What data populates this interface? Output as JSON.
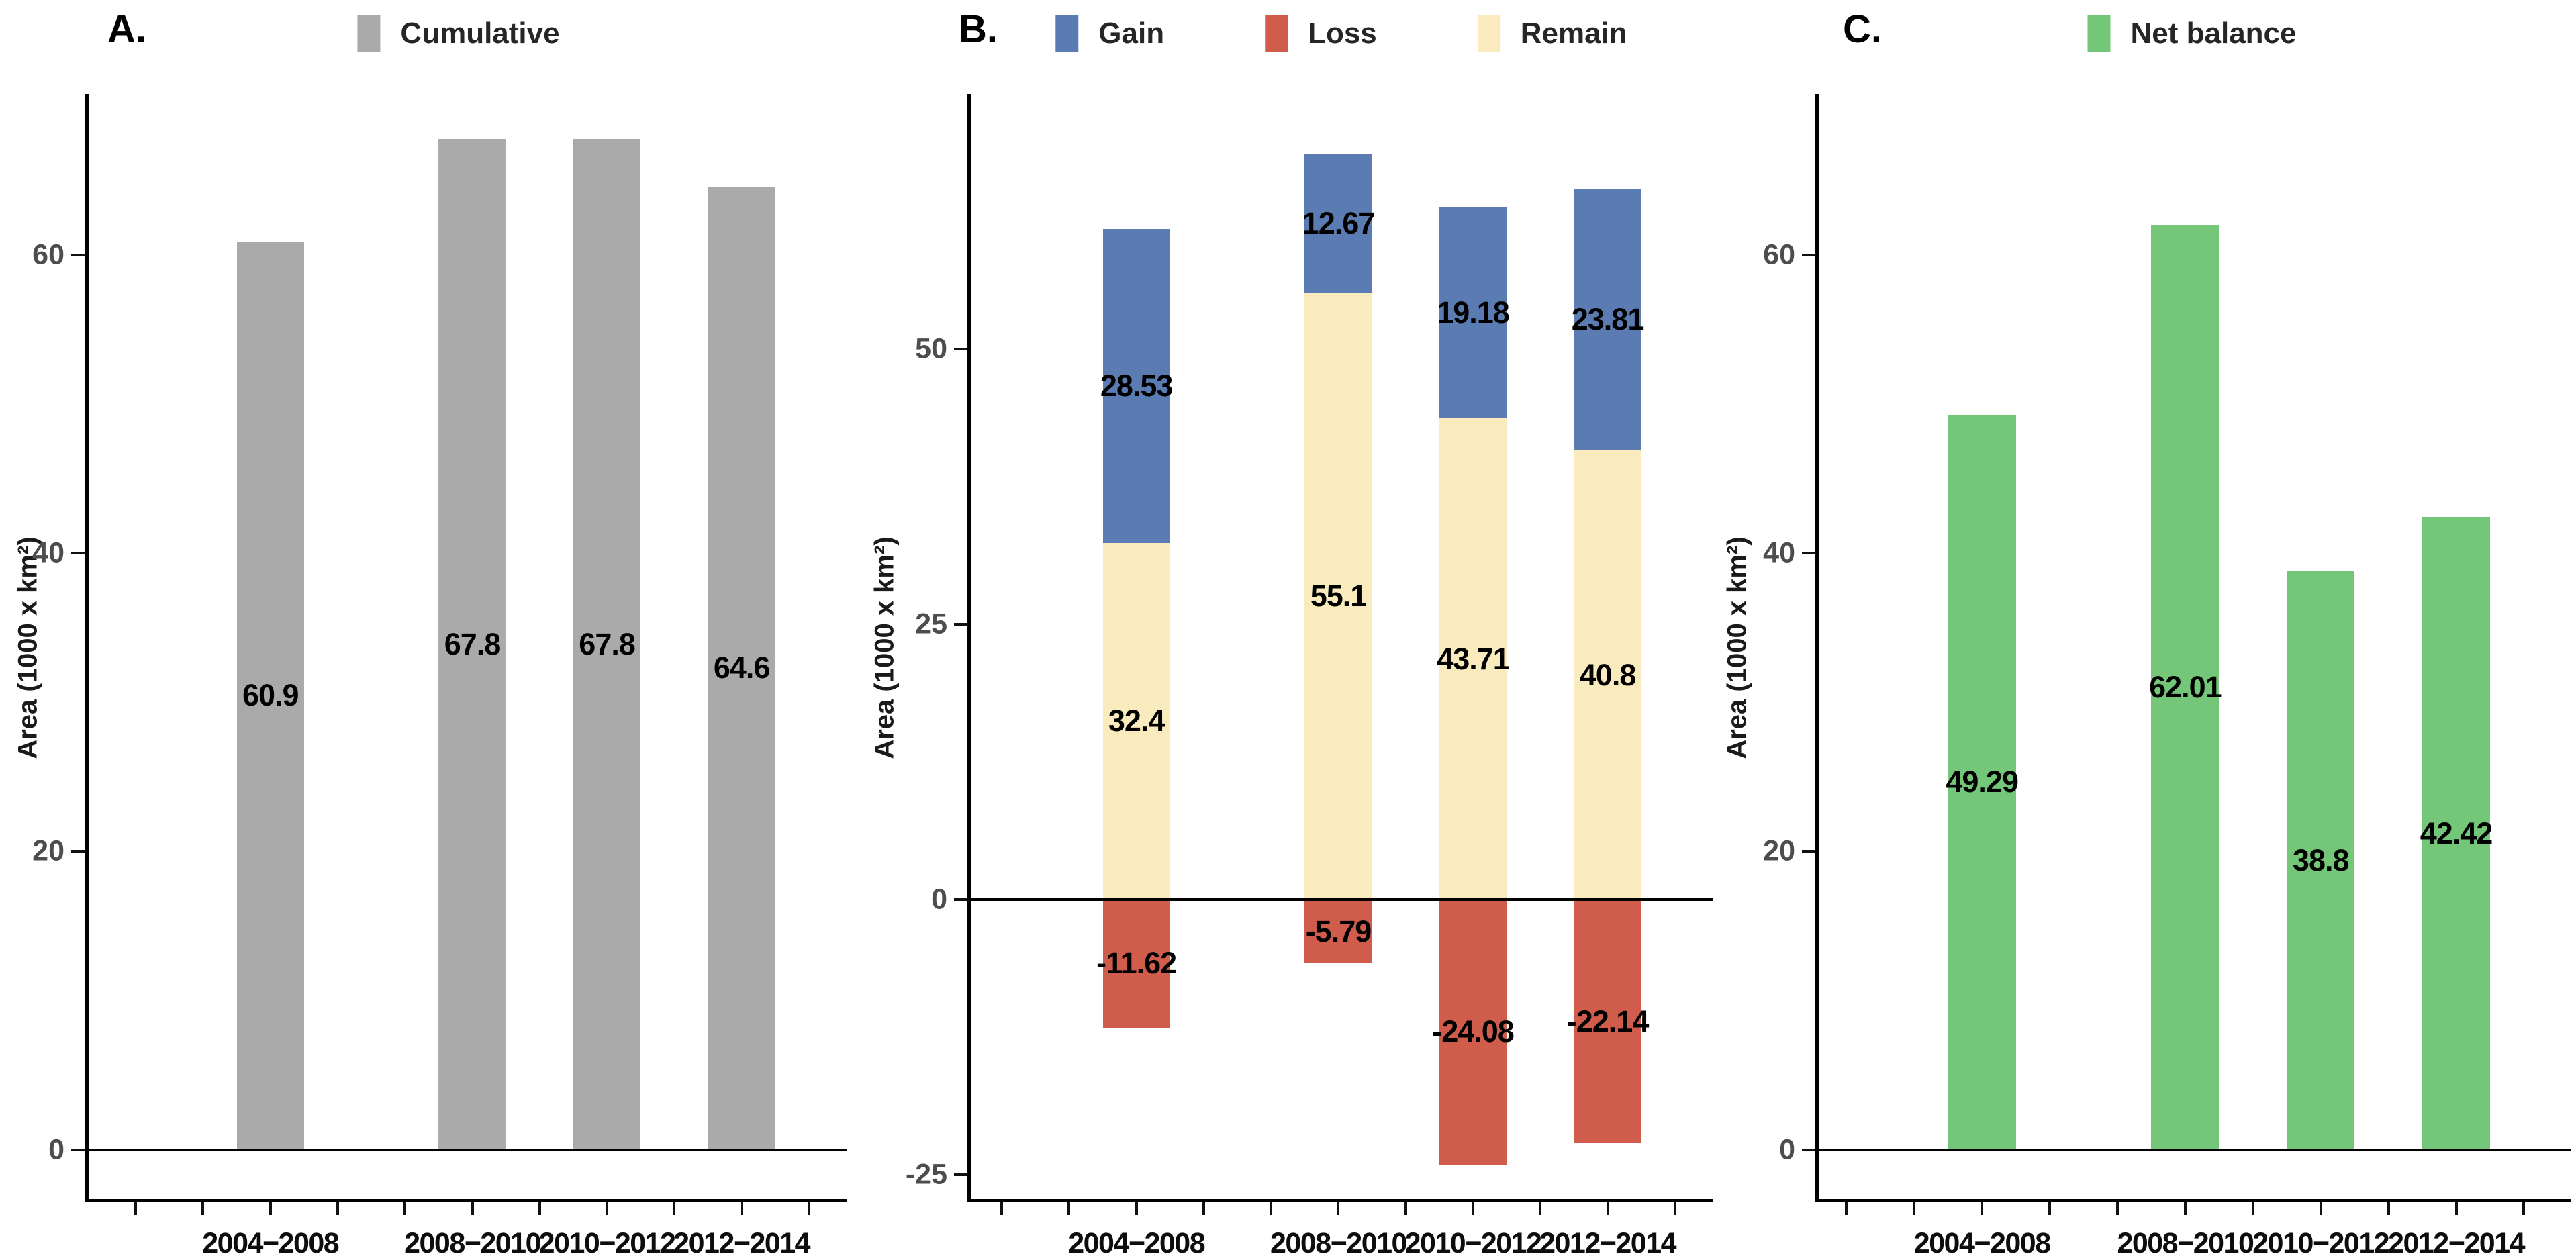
{
  "figure_background": "#FFFFFF",
  "colors": {
    "cumulative_gray": "#AAAAAA",
    "gain_blue": "#5B7CB2",
    "loss_red": "#D05C4B",
    "remain_cream": "#FAEBBE",
    "net_balance_green": "#74C678",
    "axis_black": "#000000",
    "tick_label_gray": "#4D4D4D"
  },
  "chart_data": [
    {
      "type": "bar",
      "panel_label": "A.",
      "legend": [
        {
          "label": "Cumulative",
          "color": "#AAAAAA"
        }
      ],
      "legend_position": "top-center",
      "ylabel": "Area (1000 x km²)",
      "xlabel": "",
      "categories": [
        "2004−2008",
        "2008−2010",
        "2010−2012",
        "2012−2014"
      ],
      "values": [
        60.9,
        67.8,
        67.8,
        64.6
      ],
      "value_labels": [
        "60.9",
        "67.8",
        "67.8",
        "64.6"
      ],
      "bar_color": "#AAAAAA",
      "label_placement": "middle-of-bar",
      "yticks": [
        0,
        20,
        40,
        60
      ],
      "ylim": [
        -3.3,
        70.8
      ],
      "x_centers_years": [
        2006,
        2009,
        2011,
        2013
      ],
      "xlim_years": [
        2003.3,
        2014.3
      ],
      "x_minor_tick_years": [
        2004,
        2005,
        2006,
        2007,
        2008,
        2009,
        2010,
        2011,
        2012,
        2013,
        2014
      ],
      "bar_width_years": 1.0,
      "grid": false
    },
    {
      "type": "stacked-bar",
      "panel_label": "B.",
      "legend": [
        {
          "label": "Gain",
          "color": "#5B7CB2"
        },
        {
          "label": "Loss",
          "color": "#D05C4B"
        },
        {
          "label": "Remain",
          "color": "#FAEBBE"
        }
      ],
      "legend_position": "top-center",
      "ylabel": "Area (1000 x km²)",
      "xlabel": "",
      "categories": [
        "2004−2008",
        "2008−2010",
        "2010−2012",
        "2012−2014"
      ],
      "series": [
        {
          "name": "Remain",
          "color": "#FAEBBE",
          "values": [
            32.4,
            55.1,
            43.71,
            40.8
          ],
          "value_labels": [
            "32.4",
            "55.1",
            "43.71",
            "40.8"
          ],
          "stack": "positive-base"
        },
        {
          "name": "Gain",
          "color": "#5B7CB2",
          "values": [
            28.53,
            12.67,
            19.18,
            23.81
          ],
          "value_labels": [
            "28.53",
            "12.67",
            "19.18",
            "23.81"
          ],
          "stack": "positive-top"
        },
        {
          "name": "Loss",
          "color": "#D05C4B",
          "values": [
            -11.62,
            -5.79,
            -24.08,
            -22.14
          ],
          "value_labels": [
            "-11.62",
            "-5.79",
            "-24.08",
            "-22.14"
          ],
          "stack": "negative"
        }
      ],
      "label_placement": "middle-of-segment",
      "yticks": [
        -25,
        0,
        25,
        50
      ],
      "ylim": [
        -27.2,
        73.2
      ],
      "x_centers_years": [
        2006,
        2009,
        2011,
        2013
      ],
      "xlim_years": [
        2003.55,
        2014.55
      ],
      "x_minor_tick_years": [
        2004,
        2005,
        2006,
        2007,
        2008,
        2009,
        2010,
        2011,
        2012,
        2013,
        2014
      ],
      "bar_width_years": 1.0,
      "grid": false
    },
    {
      "type": "bar",
      "panel_label": "C.",
      "legend": [
        {
          "label": "Net balance",
          "color": "#74C678"
        }
      ],
      "legend_position": "top-center",
      "ylabel": "Area (1000 x km²)",
      "xlabel": "",
      "categories": [
        "2004−2008",
        "2008−2010",
        "2010−2012",
        "2012−2014"
      ],
      "values": [
        49.29,
        62.01,
        38.8,
        42.42
      ],
      "value_labels": [
        "49.29",
        "62.01",
        "38.8",
        "42.42"
      ],
      "bar_color": "#74C678",
      "label_placement": "middle-of-bar",
      "yticks": [
        0,
        20,
        40,
        60
      ],
      "ylim": [
        -3.3,
        70.8
      ],
      "x_centers_years": [
        2006,
        2009,
        2011,
        2013
      ],
      "xlim_years": [
        2003.6,
        2014.6
      ],
      "x_minor_tick_years": [
        2004,
        2005,
        2006,
        2007,
        2008,
        2009,
        2010,
        2011,
        2012,
        2013,
        2014
      ],
      "bar_width_years": 1.0,
      "grid": false
    }
  ]
}
